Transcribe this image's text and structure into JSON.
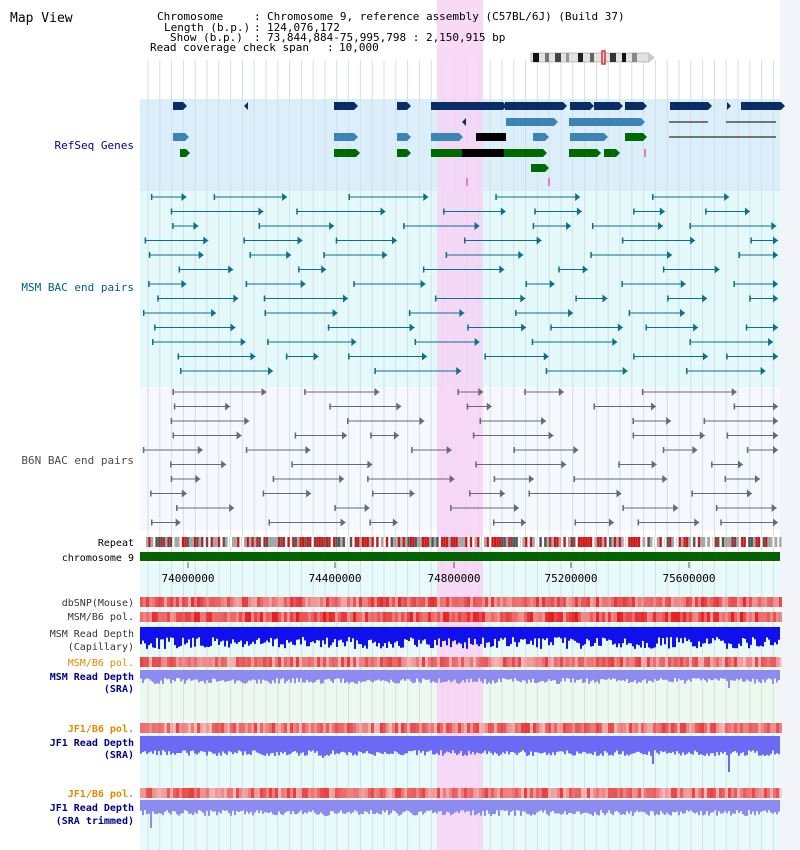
{
  "page_title": "Map View",
  "info": {
    "chromosome_label": "Chromosome",
    "chromosome_value": "Chromosome 9, reference assembly (C57BL/6J) (Build 37)",
    "length_label": "Length (b.p.)",
    "length_value": "124,076,172",
    "show_label": "Show (b.p.)",
    "show_value": "73,844,884-75,995,798 : 2,150,915 bp",
    "coverage_label": "Read coverage check span",
    "coverage_value": "10,000"
  },
  "tracks": {
    "refseq": "RefSeq Genes",
    "msm_bac": "MSM BAC end pairs",
    "b6n_bac": "B6N BAC end pairs",
    "repeat": "Repeat",
    "chromosome": "chromosome 9",
    "dbsnp": "dbSNP(Mouse)",
    "msm_b6_pol": "MSM/B6 pol.",
    "msm_read_depth_cap_1": "MSM Read Depth",
    "msm_read_depth_cap_2": "(Capillary)",
    "msm_b6_pol_sra": "MSM/B6 pol.",
    "msm_read_depth_sra_1": "MSM Read Depth",
    "msm_read_depth_sra_2": "(SRA)",
    "jf1_b6_pol_1": "JF1/B6 pol.",
    "jf1_read_depth_1": "JF1 Read Depth",
    "jf1_read_depth_1b": "(SRA)",
    "jf1_b6_pol_2": "JF1/B6 pol.",
    "jf1_read_depth_2": "JF1 Read Depth",
    "jf1_read_depth_2b": "(SRA trimmed)"
  },
  "axis_ticks": [
    "74000000",
    "74400000",
    "74800000",
    "75200000",
    "75600000"
  ],
  "colors": {
    "refseq_bg": "#dbeffa",
    "msm_bg": "#e4fafa",
    "b6n_bg": "#f5f8fc",
    "highlight": "#f7d2f4",
    "refseq_label": "#00008b",
    "msm_label": "#006080",
    "b6n_label": "#4a4a55",
    "chromosome_green": "#006400",
    "orange_label": "#e08a00",
    "navy_label": "#00008b"
  }
}
